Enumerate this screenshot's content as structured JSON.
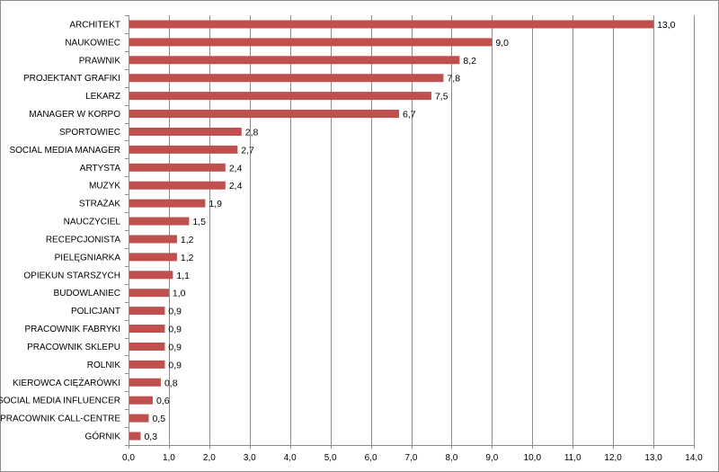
{
  "chart_data": {
    "type": "bar",
    "orientation": "horizontal",
    "categories": [
      "ARCHITEKT",
      "NAUKOWIEC",
      "PRAWNIK",
      "PROJEKTANT GRAFIKI",
      "LEKARZ",
      "MANAGER W KORPO",
      "SPORTOWIEC",
      "SOCIAL MEDIA MANAGER",
      "ARTYSTA",
      "MUZYK",
      "STRAŻAK",
      "NAUCZYCIEL",
      "RECEPCJONISTA",
      "PIELĘGNIARKA",
      "OPIEKUN STARSZYCH",
      "BUDOWLANIEC",
      "POLICJANT",
      "PRACOWNIK FABRYKI",
      "PRACOWNIK SKLEPU",
      "ROLNIK",
      "KIEROWCA CIĘŻARÓWKI",
      "SOCIAL MEDIA INFLUENCER",
      "PRACOWNIK CALL-CENTRE",
      "GÓRNIK"
    ],
    "values": [
      13.0,
      9.0,
      8.2,
      7.8,
      7.5,
      6.7,
      2.8,
      2.7,
      2.4,
      2.4,
      1.9,
      1.5,
      1.2,
      1.2,
      1.1,
      1.0,
      0.9,
      0.9,
      0.9,
      0.9,
      0.8,
      0.6,
      0.5,
      0.3
    ],
    "data_labels": [
      "13,0",
      "9,0",
      "8,2",
      "7,8",
      "7,5",
      "6,7",
      "2,8",
      "2,7",
      "2,4",
      "2,4",
      "1,9",
      "1,5",
      "1,2",
      "1,2",
      "1,1",
      "1,0",
      "0,9",
      "0,9",
      "0,9",
      "0,9",
      "0,8",
      "0,6",
      "0,5",
      "0,3"
    ],
    "xlim": [
      0,
      14
    ],
    "x_ticks": [
      0,
      1,
      2,
      3,
      4,
      5,
      6,
      7,
      8,
      9,
      10,
      11,
      12,
      13,
      14
    ],
    "x_tick_labels": [
      "0,0",
      "1,0",
      "2,0",
      "3,0",
      "4,0",
      "5,0",
      "6,0",
      "7,0",
      "8,0",
      "9,0",
      "10,0",
      "11,0",
      "12,0",
      "13,0",
      "14,0"
    ],
    "title": "",
    "xlabel": "",
    "ylabel": "",
    "grid": "vertical",
    "legend": "none",
    "bar_color": "#c0504d",
    "grid_color": "#8c8c8c"
  }
}
